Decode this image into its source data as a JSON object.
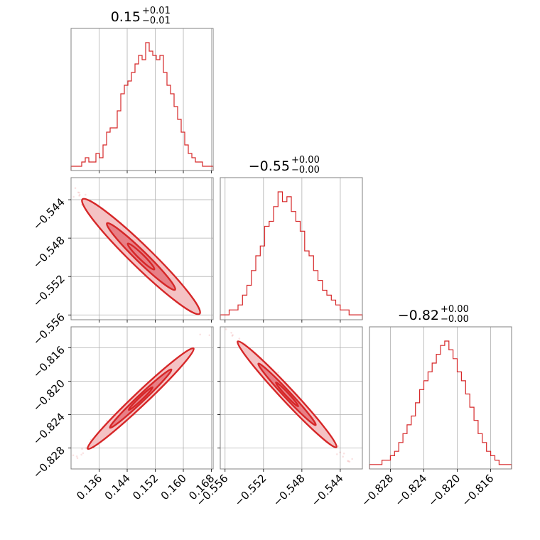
{
  "chart_data": {
    "type": "corner",
    "color": "#d62728",
    "parameters": [
      {
        "range": [
          0.128,
          0.1685
        ],
        "ticks": [
          0.136,
          0.144,
          0.152,
          0.16,
          0.168
        ],
        "tick_labels": [
          "0.136",
          "0.144",
          "0.152",
          "0.160",
          "0.168"
        ],
        "title": {
          "median": "0.15",
          "plus": "+0.01",
          "minus": "−0.01"
        },
        "histogram": [
          1,
          1,
          1,
          2,
          3,
          2,
          2,
          4,
          3,
          6,
          9,
          10,
          10,
          14,
          18,
          20,
          21,
          23,
          25,
          27,
          26,
          30,
          28,
          27,
          26,
          27,
          23,
          20,
          18,
          15,
          12,
          9,
          6,
          4,
          3,
          2,
          2,
          1,
          1,
          1
        ]
      },
      {
        "range": [
          -0.5565,
          -0.5417
        ],
        "ticks": [
          -0.556,
          -0.552,
          -0.548,
          -0.544
        ],
        "tick_labels": [
          "−0.556",
          "−0.552",
          "−0.548",
          "−0.544"
        ],
        "title": {
          "median": "−0.55",
          "plus": "+0.00",
          "minus": "−0.00"
        },
        "histogram": [
          1,
          1,
          2,
          2,
          3,
          5,
          7,
          10,
          13,
          15,
          19,
          20,
          23,
          26,
          24,
          25,
          22,
          20,
          18,
          14,
          13,
          10,
          8,
          6,
          5,
          4,
          3,
          2,
          2,
          1,
          1,
          1
        ]
      },
      {
        "range": [
          -0.8305,
          -0.8135
        ],
        "ticks": [
          -0.828,
          -0.824,
          -0.82,
          -0.816
        ],
        "tick_labels": [
          "−0.828",
          "−0.824",
          "−0.820",
          "−0.816"
        ],
        "title": {
          "median": "−0.82",
          "plus": "+0.00",
          "minus": "−0.00"
        },
        "histogram": [
          1,
          1,
          1,
          2,
          2,
          3,
          4,
          6,
          8,
          10,
          12,
          15,
          18,
          20,
          22,
          24,
          26,
          28,
          29,
          27,
          25,
          22,
          20,
          17,
          14,
          11,
          8,
          6,
          4,
          3,
          2,
          1,
          1,
          1
        ]
      }
    ]
  }
}
